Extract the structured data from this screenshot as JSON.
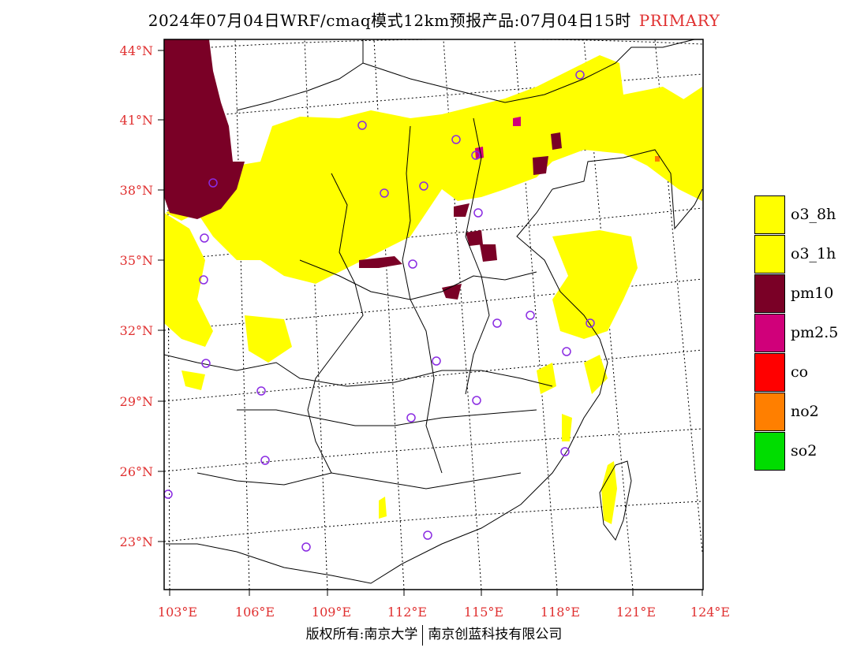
{
  "title": {
    "main": "2024年07月04日WRF/cmaq模式12km预报产品:07月04日15时",
    "tag": "PRIMARY"
  },
  "axes": {
    "lat_labels": [
      "44°N",
      "41°N",
      "38°N",
      "35°N",
      "32°N",
      "29°N",
      "26°N",
      "23°N"
    ],
    "lon_labels": [
      "103°E",
      "106°E",
      "109°E",
      "112°E",
      "115°E",
      "118°E",
      "121°E",
      "124°E"
    ],
    "label_color": "#e03030"
  },
  "legend": [
    {
      "label": "o3_8h",
      "color": "#ffff00"
    },
    {
      "label": "o3_1h",
      "color": "#ffff00"
    },
    {
      "label": "pm10",
      "color": "#7a0026"
    },
    {
      "label": "pm2.5",
      "color": "#d0007a"
    },
    {
      "label": "co",
      "color": "#ff0000"
    },
    {
      "label": "no2",
      "color": "#ff7f00"
    },
    {
      "label": "so2",
      "color": "#00dd00"
    }
  ],
  "stations": {
    "count": 30,
    "color": "#8a2be2",
    "marker": "circle"
  },
  "footer": {
    "left": "版权所有:南京大学",
    "right": "南京创蓝科技有限公司"
  }
}
